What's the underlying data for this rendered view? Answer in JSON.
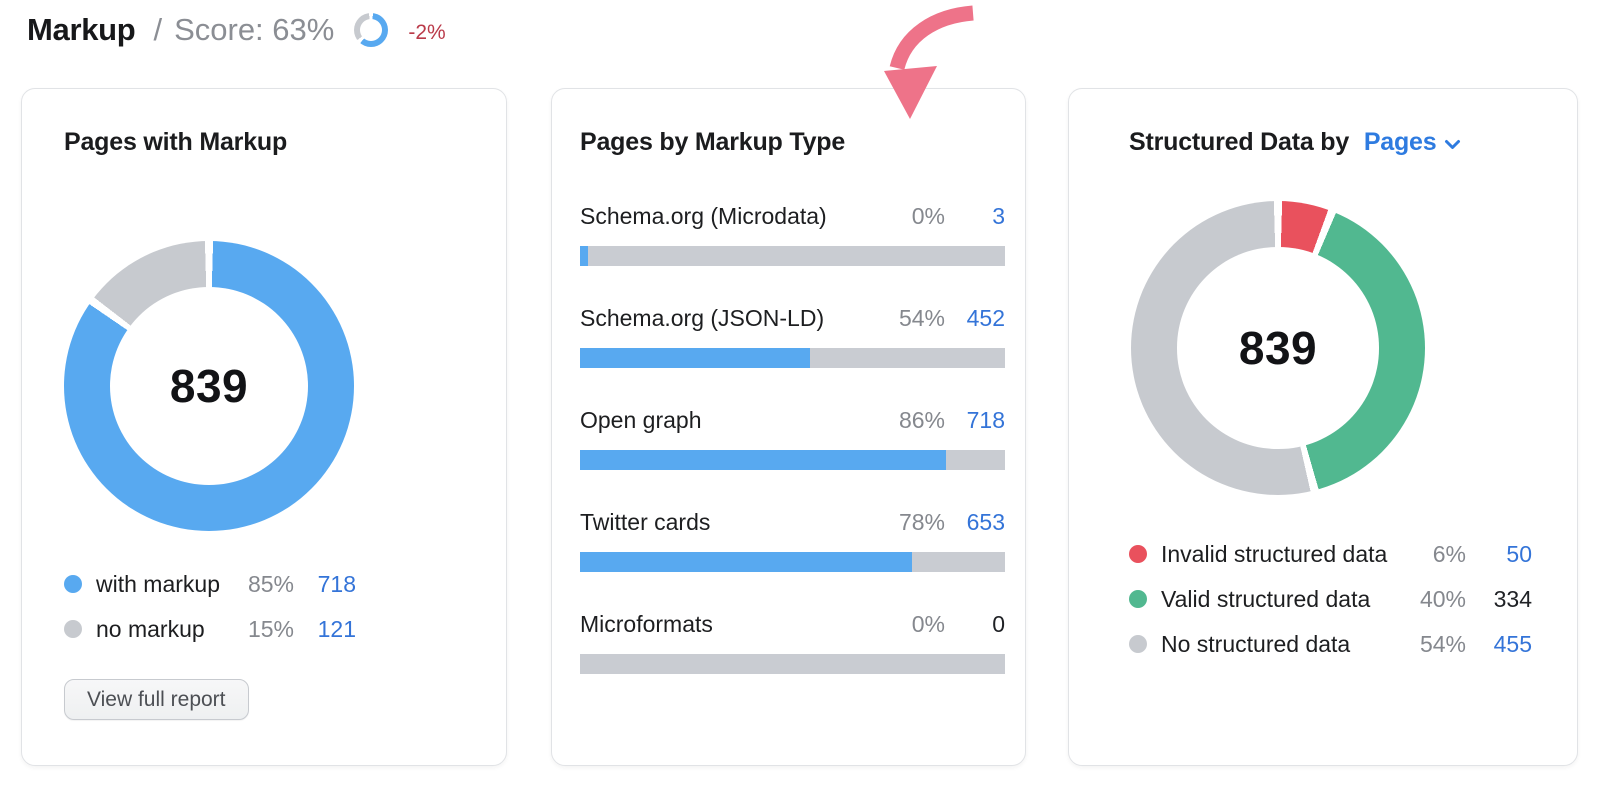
{
  "header": {
    "title": "Markup",
    "separator": "/",
    "score_label": "Score: 63%",
    "score_percent": 63,
    "delta_label": "-2%"
  },
  "colors": {
    "chart_blue": "#58a9f0",
    "track_gray": "#c9ccd2",
    "donut_gray": "#c7cacf",
    "green": "#51b890",
    "red": "#e9515d",
    "link_blue": "#3474d8",
    "selector_blue": "#2e7be0",
    "delta_red": "#ba3a49",
    "arrow_pink": "#ee7389"
  },
  "cards": {
    "pages_with_markup": {
      "title": "Pages with Markup",
      "total": "839",
      "legend": [
        {
          "label": "with markup",
          "percent": "85%",
          "count": "718",
          "count_is_link": true
        },
        {
          "label": "no markup",
          "percent": "15%",
          "count": "121",
          "count_is_link": true
        }
      ],
      "button_label": "View full report"
    },
    "pages_by_markup_type": {
      "title": "Pages by Markup Type",
      "rows": [
        {
          "label": "Schema.org (Microdata)",
          "percent": "0%",
          "count": "3",
          "count_is_link": true
        },
        {
          "label": "Schema.org (JSON-LD)",
          "percent": "54%",
          "count": "452",
          "count_is_link": true
        },
        {
          "label": "Open graph",
          "percent": "86%",
          "count": "718",
          "count_is_link": true
        },
        {
          "label": "Twitter cards",
          "percent": "78%",
          "count": "653",
          "count_is_link": true
        },
        {
          "label": "Microformats",
          "percent": "0%",
          "count": "0",
          "count_is_link": false
        }
      ]
    },
    "structured_data": {
      "title_prefix": "Structured Data by",
      "selector_label": "Pages",
      "total": "839",
      "legend": [
        {
          "label": "Invalid structured data",
          "percent": "6%",
          "count": "50",
          "count_is_link": true
        },
        {
          "label": "Valid structured data",
          "percent": "40%",
          "count": "334",
          "count_is_link": false
        },
        {
          "label": "No structured data",
          "percent": "54%",
          "count": "455",
          "count_is_link": true
        }
      ]
    }
  },
  "chart_data": [
    {
      "type": "donut",
      "title": "Pages with Markup",
      "center_total": 839,
      "gap_percent": 0.9,
      "segments": [
        {
          "label": "with markup",
          "percent": 85,
          "count": 718,
          "color": "#58a9f0"
        },
        {
          "label": "no markup",
          "percent": 15,
          "count": 121,
          "color": "#c7cacf"
        }
      ]
    },
    {
      "type": "bar",
      "title": "Pages by Markup Type",
      "orientation": "horizontal",
      "xlim": [
        0,
        100
      ],
      "bar_color": "#58a9f0",
      "track_color": "#c9ccd2",
      "rows": [
        {
          "label": "Schema.org (Microdata)",
          "percent": 0,
          "count": 3
        },
        {
          "label": "Schema.org (JSON-LD)",
          "percent": 54,
          "count": 452
        },
        {
          "label": "Open graph",
          "percent": 86,
          "count": 718
        },
        {
          "label": "Twitter cards",
          "percent": 78,
          "count": 653
        },
        {
          "label": "Microformats",
          "percent": 0,
          "count": 0
        }
      ]
    },
    {
      "type": "donut",
      "title": "Structured Data by Pages",
      "center_total": 839,
      "gap_percent": 0.9,
      "segments": [
        {
          "label": "Invalid structured data",
          "percent": 6,
          "count": 50,
          "color": "#e9515d"
        },
        {
          "label": "Valid structured data",
          "percent": 40,
          "count": 334,
          "color": "#51b890"
        },
        {
          "label": "No structured data",
          "percent": 54,
          "count": 455,
          "color": "#c7cacf"
        }
      ]
    },
    {
      "type": "donut",
      "title": "Markup Score",
      "percent": 63,
      "gap_percent": 4,
      "segments": [
        {
          "label": "score",
          "percent": 63,
          "color": "#58a9f0"
        },
        {
          "label": "remaining",
          "percent": 37,
          "color": "#c7cacf"
        }
      ]
    }
  ]
}
